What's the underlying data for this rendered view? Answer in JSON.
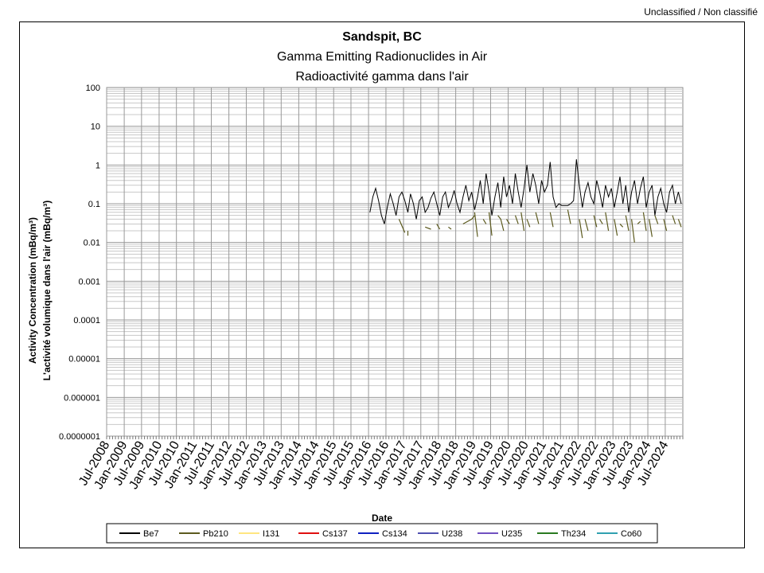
{
  "classification": "Unclassified / Non classifié",
  "chart_data": {
    "type": "line",
    "title": "Sandspit, BC",
    "subtitle_en": "Gamma Emitting Radionuclides in Air",
    "subtitle_fr": "Radioactivité gamma dans l'air",
    "xlabel": "Date",
    "ylabel_en": "Activity Concentration  (mBq/m³)",
    "ylabel_fr": "L'activité volumique dans l'air (mBq/m³)",
    "y_scale": "log",
    "ylim": [
      1e-07,
      100
    ],
    "y_ticks": [
      "100",
      "10",
      "1",
      "0.1",
      "0.01",
      "0.001",
      "0.0001",
      "0.00001",
      "0.000001",
      "0.0000001"
    ],
    "xlim": [
      "2008-07-01",
      "2025-01-01"
    ],
    "x_ticks": [
      "Jul-2008",
      "Jan-2009",
      "Jul-2009",
      "Jan-2010",
      "Jul-2010",
      "Jan-2011",
      "Jul-2011",
      "Jan-2012",
      "Jul-2012",
      "Jan-2013",
      "Jul-2013",
      "Jan-2014",
      "Jul-2014",
      "Jan-2015",
      "Jul-2015",
      "Jan-2016",
      "Jul-2016",
      "Jan-2017",
      "Jul-2017",
      "Jan-2018",
      "Jul-2018",
      "Jan-2019",
      "Jul-2019",
      "Jan-2020",
      "Jul-2020",
      "Jan-2021",
      "Jul-2021",
      "Jan-2022",
      "Jul-2022",
      "Jan-2023",
      "Jul-2023",
      "Jan-2024",
      "Jul-2024"
    ],
    "grid": true,
    "legend_position": "bottom",
    "series": [
      {
        "name": "Be7",
        "color": "#000000",
        "x": [
          "2016-01",
          "2016-02",
          "2016-03",
          "2016-04",
          "2016-05",
          "2016-06",
          "2016-07",
          "2016-08",
          "2016-09",
          "2016-10",
          "2016-11",
          "2016-12",
          "2017-01",
          "2017-02",
          "2017-03",
          "2017-04",
          "2017-05",
          "2017-06",
          "2017-07",
          "2017-08",
          "2017-09",
          "2017-10",
          "2017-11",
          "2017-12",
          "2018-01",
          "2018-02",
          "2018-03",
          "2018-04",
          "2018-05",
          "2018-06",
          "2018-07",
          "2018-08",
          "2018-09",
          "2018-10",
          "2018-11",
          "2018-12",
          "2019-01",
          "2019-02",
          "2019-03",
          "2019-04",
          "2019-05",
          "2019-06",
          "2019-07",
          "2019-08",
          "2019-09",
          "2019-10",
          "2019-11",
          "2019-12",
          "2020-01",
          "2020-02",
          "2020-03",
          "2020-04",
          "2020-05",
          "2020-06",
          "2020-07",
          "2020-08",
          "2020-09",
          "2020-10",
          "2020-11",
          "2020-12",
          "2021-01",
          "2021-02",
          "2021-03",
          "2021-04",
          "2021-05",
          "2021-06",
          "2021-07",
          "2021-08",
          "2021-09",
          "2021-10",
          "2021-11",
          "2021-12",
          "2022-01",
          "2022-02",
          "2022-03",
          "2022-04",
          "2022-05",
          "2022-06",
          "2022-07",
          "2022-08",
          "2022-09",
          "2022-10",
          "2022-11",
          "2022-12",
          "2023-01",
          "2023-02",
          "2023-03",
          "2023-04",
          "2023-05",
          "2023-06",
          "2023-07",
          "2023-08",
          "2023-09",
          "2023-10",
          "2023-11",
          "2023-12",
          "2024-01",
          "2024-02",
          "2024-03",
          "2024-04",
          "2024-05",
          "2024-06",
          "2024-07",
          "2024-08",
          "2024-09",
          "2024-10",
          "2024-11",
          "2024-12"
        ],
        "values": [
          0.06,
          0.15,
          0.25,
          0.12,
          0.05,
          0.03,
          0.08,
          0.18,
          0.1,
          0.05,
          0.15,
          0.2,
          0.12,
          0.06,
          0.18,
          0.1,
          0.04,
          0.12,
          0.15,
          0.06,
          0.08,
          0.14,
          0.2,
          0.1,
          0.05,
          0.15,
          0.2,
          0.08,
          0.12,
          0.22,
          0.1,
          0.06,
          0.15,
          0.3,
          0.12,
          0.2,
          0.07,
          0.15,
          0.4,
          0.1,
          0.6,
          0.2,
          0.05,
          0.15,
          0.35,
          0.08,
          0.5,
          0.15,
          0.3,
          0.1,
          0.6,
          0.2,
          0.08,
          0.25,
          1.0,
          0.2,
          0.6,
          0.3,
          0.1,
          0.4,
          0.2,
          0.3,
          1.2,
          0.15,
          0.08,
          0.1,
          0.09,
          0.09,
          0.09,
          0.1,
          0.12,
          1.4,
          0.3,
          0.08,
          0.2,
          0.35,
          0.15,
          0.1,
          0.4,
          0.2,
          0.08,
          0.3,
          0.15,
          0.25,
          0.08,
          0.2,
          0.5,
          0.1,
          0.3,
          0.06,
          0.2,
          0.4,
          0.1,
          0.25,
          0.5,
          0.08,
          0.2,
          0.3,
          0.05,
          0.15,
          0.25,
          0.1,
          0.06,
          0.2,
          0.3,
          0.1,
          0.2,
          0.1
        ]
      },
      {
        "name": "Pb210",
        "color": "#5c5a1e",
        "segments": [
          [
            [
              "2016-11",
              0.04
            ],
            [
              "2017-01",
              0.018
            ]
          ],
          [
            [
              "2017-02",
              0.02
            ],
            [
              "2017-02",
              0.015
            ]
          ],
          [
            [
              "2017-08",
              0.025
            ],
            [
              "2017-10",
              0.022
            ]
          ],
          [
            [
              "2017-12",
              0.03
            ],
            [
              "2018-01",
              0.022
            ]
          ],
          [
            [
              "2018-04",
              0.025
            ],
            [
              "2018-05",
              0.022
            ]
          ],
          [
            [
              "2018-09",
              0.03
            ],
            [
              "2018-12",
              0.04
            ],
            [
              "2019-01",
              0.05
            ]
          ],
          [
            [
              "2019-01",
              0.06
            ],
            [
              "2019-02",
              0.014
            ]
          ],
          [
            [
              "2019-04",
              0.04
            ],
            [
              "2019-05",
              0.03
            ]
          ],
          [
            [
              "2019-06",
              0.06
            ],
            [
              "2019-07",
              0.015
            ]
          ],
          [
            [
              "2019-09",
              0.05
            ],
            [
              "2019-10",
              0.04
            ],
            [
              "2019-11",
              0.02
            ]
          ],
          [
            [
              "2019-12",
              0.04
            ],
            [
              "2020-01",
              0.03
            ]
          ],
          [
            [
              "2020-03",
              0.05
            ],
            [
              "2020-04",
              0.03
            ]
          ],
          [
            [
              "2020-05",
              0.06
            ],
            [
              "2020-06",
              0.02
            ]
          ],
          [
            [
              "2020-07",
              0.04
            ],
            [
              "2020-08",
              0.025
            ]
          ],
          [
            [
              "2020-10",
              0.06
            ],
            [
              "2020-11",
              0.03
            ]
          ],
          [
            [
              "2021-03",
              0.06
            ],
            [
              "2021-04",
              0.025
            ]
          ],
          [
            [
              "2021-09",
              0.07
            ],
            [
              "2021-10",
              0.03
            ]
          ],
          [
            [
              "2022-01",
              0.04
            ],
            [
              "2022-02",
              0.013
            ]
          ],
          [
            [
              "2022-03",
              0.04
            ],
            [
              "2022-04",
              0.02
            ]
          ],
          [
            [
              "2022-06",
              0.05
            ],
            [
              "2022-07",
              0.025
            ]
          ],
          [
            [
              "2022-08",
              0.04
            ],
            [
              "2022-09",
              0.03
            ]
          ],
          [
            [
              "2022-10",
              0.06
            ],
            [
              "2022-11",
              0.02
            ]
          ],
          [
            [
              "2023-01",
              0.04
            ],
            [
              "2023-02",
              0.015
            ]
          ],
          [
            [
              "2023-03",
              0.03
            ],
            [
              "2023-04",
              0.025
            ]
          ],
          [
            [
              "2023-05",
              0.05
            ],
            [
              "2023-06",
              0.02
            ]
          ],
          [
            [
              "2023-07",
              0.04
            ],
            [
              "2023-08",
              0.01
            ]
          ],
          [
            [
              "2023-09",
              0.03
            ],
            [
              "2023-10",
              0.035
            ]
          ],
          [
            [
              "2023-11",
              0.06
            ],
            [
              "2023-12",
              0.02
            ]
          ],
          [
            [
              "2024-01",
              0.04
            ],
            [
              "2024-02",
              0.014
            ]
          ],
          [
            [
              "2024-03",
              0.05
            ],
            [
              "2024-04",
              0.03
            ]
          ],
          [
            [
              "2024-06",
              0.04
            ],
            [
              "2024-07",
              0.02
            ]
          ],
          [
            [
              "2024-09",
              0.05
            ],
            [
              "2024-10",
              0.03
            ]
          ],
          [
            [
              "2024-11",
              0.04
            ],
            [
              "2024-12",
              0.025
            ]
          ]
        ]
      },
      {
        "name": "I131",
        "color": "#ffe680"
      },
      {
        "name": "Cs137",
        "color": "#e01010"
      },
      {
        "name": "Cs134",
        "color": "#1020c0"
      },
      {
        "name": "U238",
        "color": "#5050b0"
      },
      {
        "name": "U235",
        "color": "#7050c0"
      },
      {
        "name": "Th234",
        "color": "#2a7a20"
      },
      {
        "name": "Co60",
        "color": "#30a0b0"
      }
    ]
  }
}
